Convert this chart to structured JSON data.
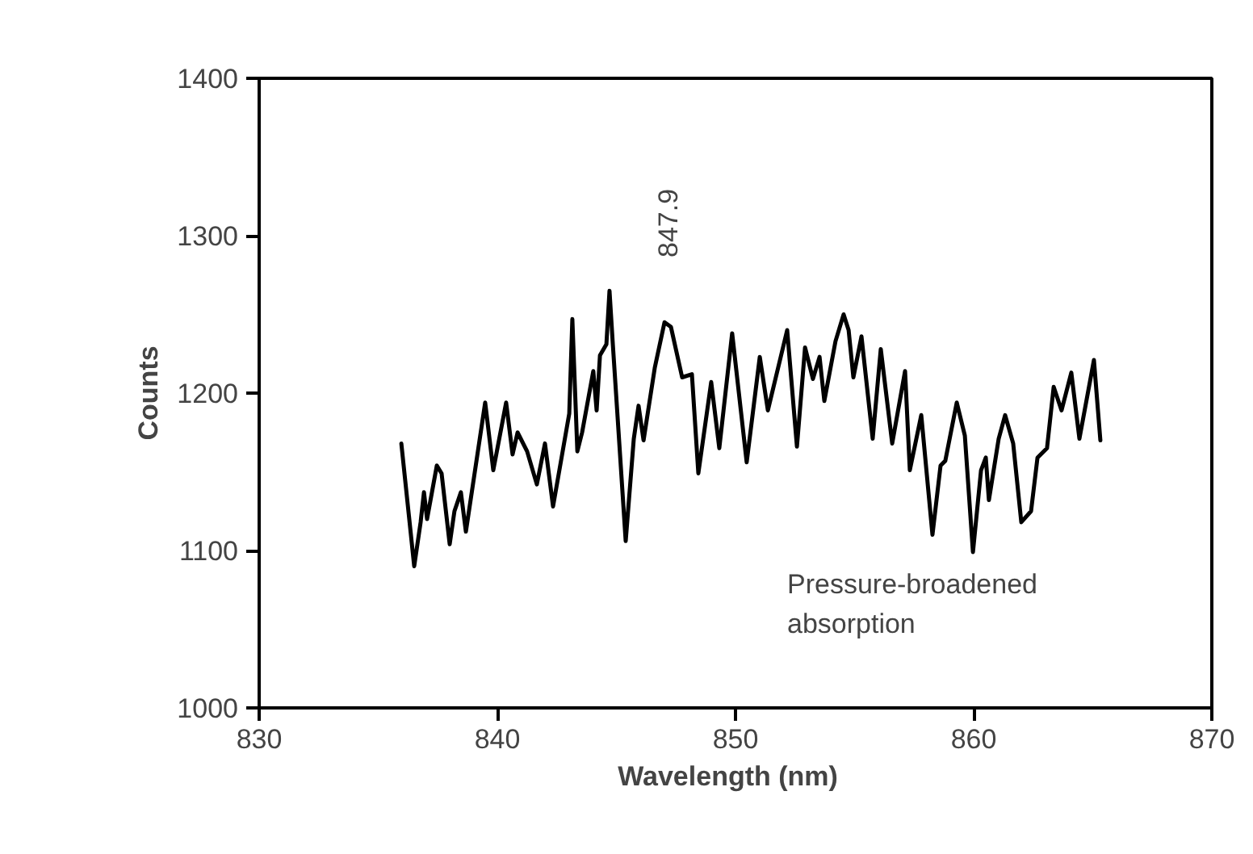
{
  "chart_data": {
    "type": "line",
    "xlabel": "Wavelength   (nm)",
    "ylabel": "Counts",
    "x": [
      835.97,
      836.51,
      836.78,
      836.92,
      837.05,
      837.46,
      837.66,
      838.0,
      838.2,
      838.47,
      838.68,
      839.49,
      839.83,
      840.37,
      840.64,
      840.85,
      841.25,
      841.66,
      842.0,
      842.34,
      843.02,
      843.15,
      843.36,
      843.56,
      844.03,
      844.17,
      844.31,
      844.58,
      844.71,
      844.85,
      845.39,
      845.73,
      845.93,
      846.14,
      846.61,
      847.02,
      847.29,
      847.76,
      848.17,
      848.44,
      848.98,
      849.32,
      849.86,
      850.47,
      851.02,
      851.36,
      852.17,
      852.58,
      852.92,
      853.25,
      853.53,
      853.73,
      854.2,
      854.54,
      854.75,
      854.95,
      855.29,
      855.76,
      856.1,
      856.58,
      857.12,
      857.32,
      857.8,
      858.27,
      858.61,
      858.81,
      859.29,
      859.63,
      859.97,
      860.31,
      860.51,
      860.64,
      861.05,
      861.32,
      861.66,
      862.0,
      862.41,
      862.68,
      863.08,
      863.36,
      863.69,
      864.1,
      864.44,
      865.05,
      865.32
    ],
    "series": [
      {
        "color": "#000000",
        "values": [
          1168,
          1090,
          1118,
          1137,
          1120,
          1154,
          1149,
          1104,
          1125,
          1137,
          1112,
          1194,
          1151,
          1194,
          1161,
          1175,
          1163,
          1142,
          1168,
          1128,
          1187,
          1247,
          1163,
          1175,
          1214,
          1189,
          1224,
          1231,
          1265,
          1231,
          1106,
          1171,
          1192,
          1170,
          1216,
          1245,
          1242,
          1210,
          1212,
          1149,
          1207,
          1165,
          1238,
          1156,
          1223,
          1189,
          1240,
          1166,
          1229,
          1209,
          1223,
          1195,
          1233,
          1250,
          1240,
          1210,
          1236,
          1171,
          1228,
          1168,
          1214,
          1151,
          1186,
          1110,
          1154,
          1157,
          1194,
          1173,
          1099,
          1151,
          1159,
          1132,
          1171,
          1186,
          1168,
          1118,
          1125,
          1159,
          1165,
          1204,
          1189,
          1213,
          1171,
          1221,
          1170
        ]
      }
    ],
    "xlim": [
      830,
      870
    ],
    "ylim": [
      1000,
      1400
    ],
    "xticks": [
      830,
      840,
      850,
      860,
      870
    ],
    "yticks": [
      1000,
      1100,
      1200,
      1300,
      1400
    ],
    "grid": false,
    "annotations": [
      "847.9",
      "Pressure-broadened\nabsorption"
    ]
  }
}
